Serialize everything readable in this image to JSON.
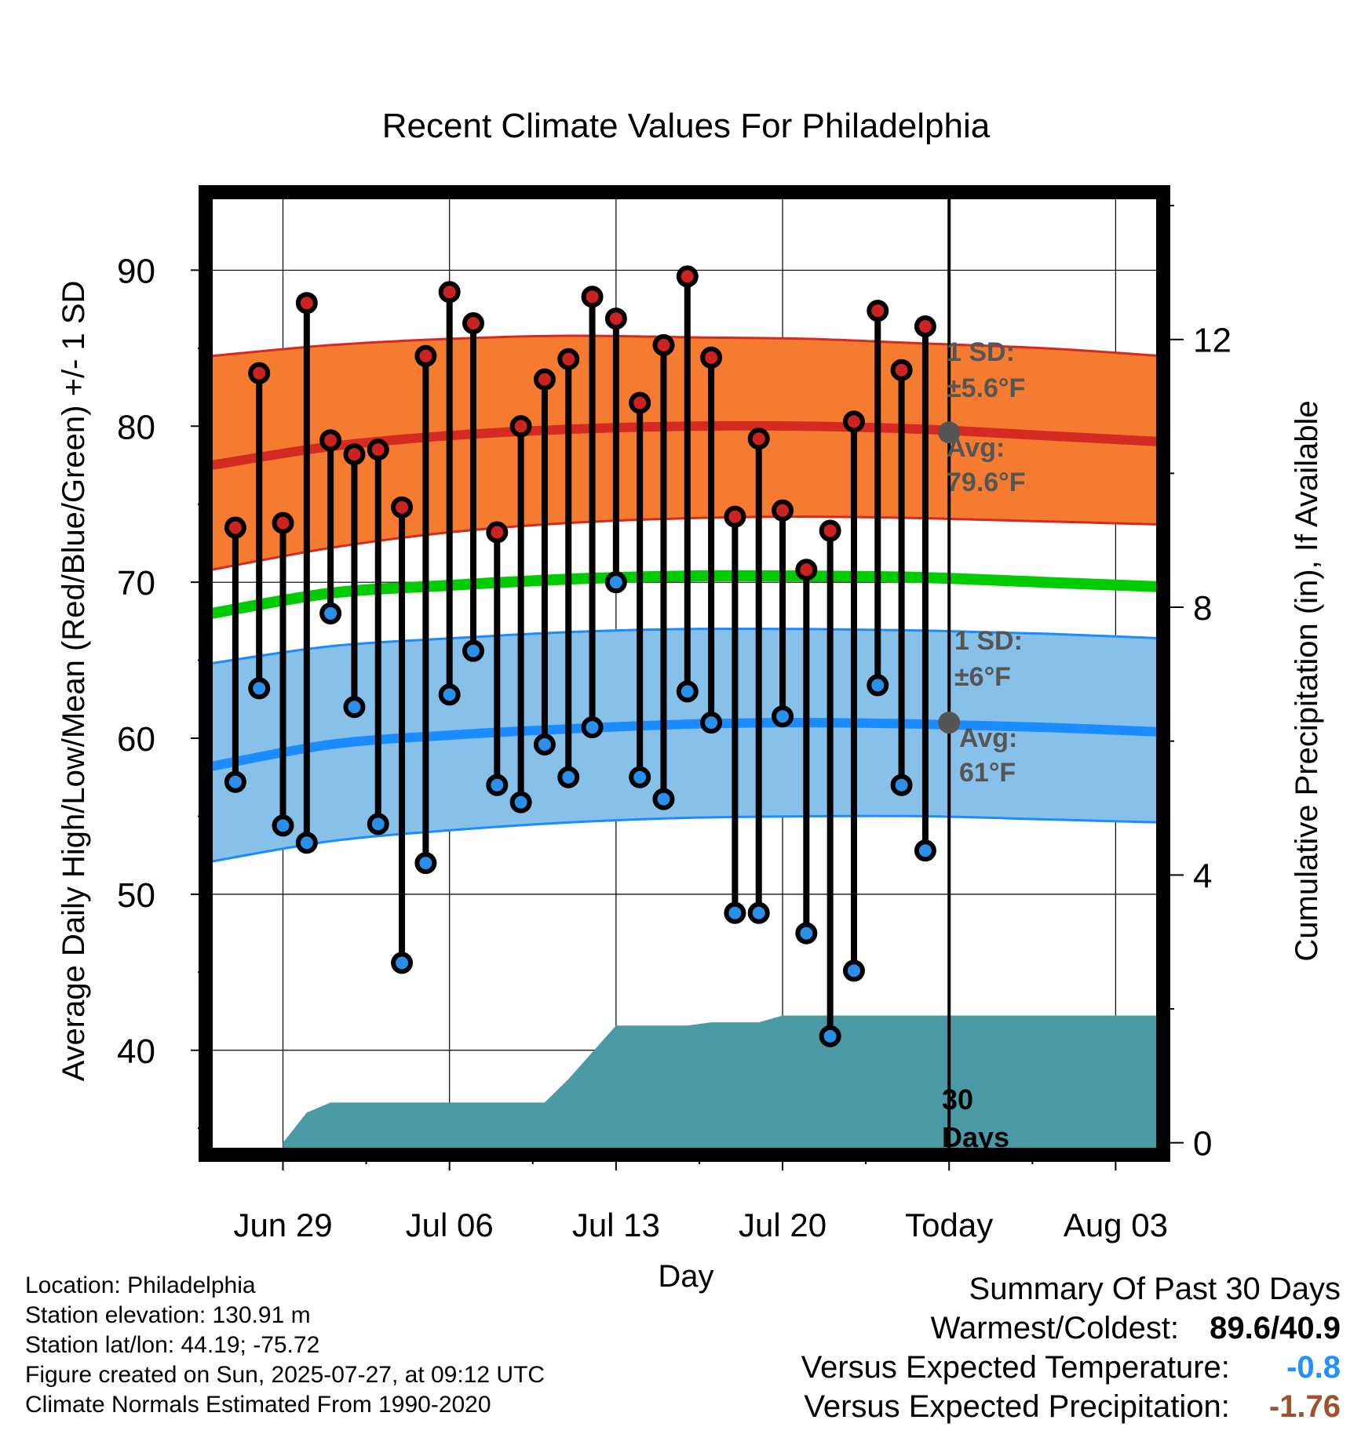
{
  "chart_data": {
    "type": "line",
    "title": "Recent Climate Values For Philadelphia",
    "xlabel": "Day",
    "ylabel_left": "Average Daily High/Low/Mean (Red/Blue/Green) +/- 1 SD",
    "ylabel_right": "Cumulative Precipitation (in), If Available",
    "x_tick_labels": [
      "Jun 29",
      "Jul 06",
      "Jul 13",
      "Jul 20",
      "Today",
      "Aug 03"
    ],
    "x_tick_days": [
      0,
      7,
      14,
      21,
      28,
      35
    ],
    "y_left_ticks": [
      40,
      50,
      60,
      70,
      80,
      90
    ],
    "y_left_range": [
      33.3,
      95.0
    ],
    "y_right_ticks": [
      0,
      4,
      8,
      12
    ],
    "y_right_range": [
      -0.18,
      14.2
    ],
    "x_range": [
      -3.25,
      37.0
    ],
    "grid": true,
    "daily_values": {
      "days": [
        -2,
        -1,
        0,
        1,
        2,
        3,
        4,
        5,
        6,
        7,
        8,
        9,
        10,
        11,
        12,
        13,
        14,
        15,
        16,
        17,
        18,
        19,
        20,
        21,
        22,
        23,
        24,
        25,
        26,
        27
      ],
      "highs": [
        73.5,
        83.4,
        73.8,
        87.9,
        79.1,
        78.2,
        78.5,
        74.8,
        84.5,
        88.6,
        86.6,
        73.2,
        80.0,
        83.0,
        84.3,
        88.3,
        86.9,
        81.5,
        85.2,
        89.6,
        84.4,
        74.2,
        79.2,
        74.6,
        70.8,
        73.3,
        80.3,
        87.4,
        83.6,
        86.4
      ],
      "lows": [
        57.2,
        63.2,
        54.4,
        53.3,
        68.0,
        62.0,
        54.5,
        45.6,
        52.0,
        62.8,
        65.6,
        57.0,
        55.9,
        59.6,
        57.5,
        60.7,
        70.0,
        57.5,
        56.1,
        63.0,
        61.0,
        48.8,
        48.8,
        61.4,
        47.5,
        40.9,
        45.1,
        63.4,
        57.0,
        52.8
      ]
    },
    "normals": {
      "days": [
        -3,
        2,
        7,
        12,
        17,
        22,
        27,
        32,
        37
      ],
      "avg_high": [
        77.5,
        78.7,
        79.4,
        79.8,
        80.0,
        80.0,
        79.8,
        79.4,
        79.0
      ],
      "high_upper": [
        84.5,
        85.2,
        85.6,
        85.8,
        85.7,
        85.6,
        85.3,
        85.0,
        84.5
      ],
      "high_lower": [
        70.8,
        72.2,
        73.2,
        73.8,
        74.1,
        74.2,
        74.1,
        73.9,
        73.7
      ],
      "avg_mean": [
        68.0,
        69.3,
        69.8,
        70.2,
        70.4,
        70.4,
        70.3,
        70.0,
        69.7
      ],
      "avg_low": [
        58.2,
        59.6,
        60.2,
        60.6,
        60.9,
        61.0,
        60.9,
        60.7,
        60.4
      ],
      "low_upper": [
        64.8,
        65.9,
        66.4,
        66.8,
        67.0,
        67.0,
        66.9,
        66.7,
        66.4
      ],
      "low_lower": [
        52.1,
        53.4,
        54.1,
        54.6,
        54.9,
        55.0,
        55.0,
        54.8,
        54.6
      ]
    },
    "precip_cumulative": {
      "days": [
        0,
        1,
        2,
        11,
        12,
        13,
        14,
        17,
        18,
        19,
        20,
        21,
        37
      ],
      "values": [
        0.0,
        0.45,
        0.6,
        0.6,
        0.95,
        1.35,
        1.75,
        1.75,
        1.8,
        1.8,
        1.8,
        1.9,
        1.9
      ]
    },
    "today_day": 28,
    "annotations": {
      "high_sd": "1 SD:\n±5.6°F",
      "high_avg": "Avg:\n79.6°F",
      "high_avg_value": 79.6,
      "low_sd": "1 SD:\n±6°F",
      "low_avg": "Avg:\n61°F",
      "low_avg_value": 61,
      "window": "30\nDays"
    },
    "colors": {
      "high_band": "#f47b2f",
      "high_line": "#d42a22",
      "mean_line": "#00cc00",
      "low_band": "#87c0e8",
      "low_line": "#1a8cff",
      "precip": "#4a9aa5",
      "high_marker": "#cc2222",
      "low_marker": "#2a8fe8",
      "annotation": "#555555",
      "frame": "#000000"
    }
  },
  "footer": {
    "location": "Location: Philadelphia",
    "elevation": "Station elevation: 130.91 m",
    "latlon": "Station lat/lon: 44.19; -75.72",
    "created": "Figure created on Sun, 2025-07-27, at 09:12 UTC",
    "normals": "Climate Normals Estimated From 1990-2020"
  },
  "summary": {
    "title": "Summary Of Past 30 Days",
    "warm_cold_label": "Warmest/Coldest:",
    "warm_cold_value": "89.6/40.9",
    "temp_label": "Versus Expected Temperature:",
    "temp_value": "-0.8",
    "temp_color": "#1e90ff",
    "precip_label": "Versus Expected Precipitation:",
    "precip_value": "-1.76",
    "precip_color": "#a0522d"
  }
}
